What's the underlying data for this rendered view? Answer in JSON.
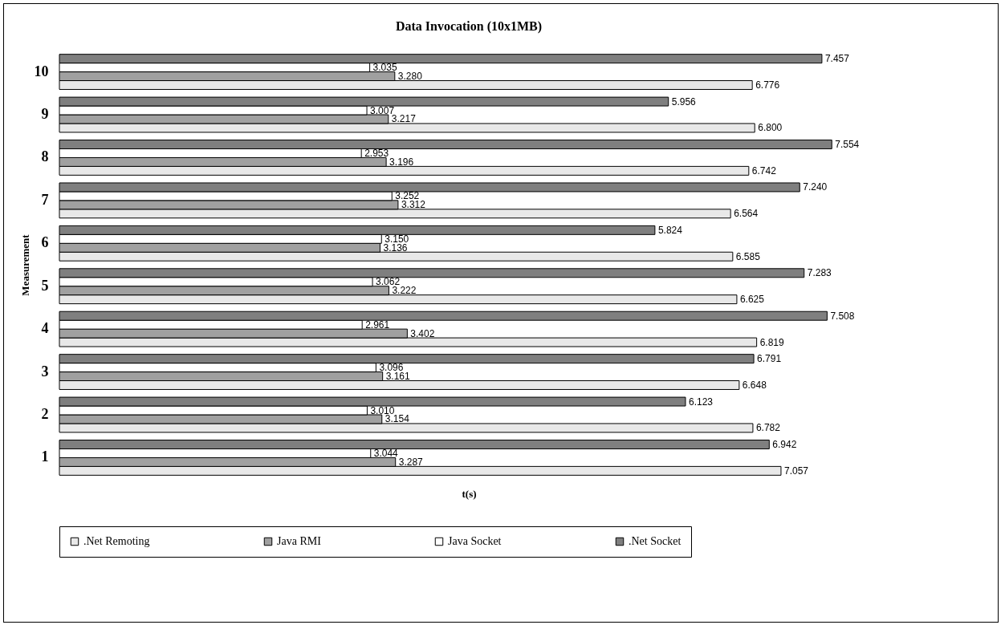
{
  "chart_data": {
    "type": "bar",
    "orientation": "horizontal",
    "title": "Data Invocation (10x1MB)",
    "xlabel": "t(s)",
    "ylabel": "Measurement",
    "categories": [
      "10",
      "9",
      "8",
      "7",
      "6",
      "5",
      "4",
      "3",
      "2",
      "1"
    ],
    "series": [
      {
        "name": ".Net Remoting",
        "color": "#e8e8e8",
        "values": [
          6.776,
          6.8,
          6.742,
          6.564,
          6.585,
          6.625,
          6.819,
          6.648,
          6.782,
          7.057
        ],
        "value_labels": [
          "6.776",
          "6.800",
          "6.742",
          "6.564",
          "6.585",
          "6.625",
          "6.819",
          "6.648",
          "6.782",
          "7.057"
        ]
      },
      {
        "name": "Java RMI",
        "color": "#a0a0a0",
        "values": [
          3.28,
          3.217,
          3.196,
          3.312,
          3.136,
          3.222,
          3.402,
          3.161,
          3.154,
          3.287
        ],
        "value_labels": [
          "3.280",
          "3.217",
          "3.196",
          "3.312",
          "3.136",
          "3.222",
          "3.402",
          "3.161",
          "3.154",
          "3.287"
        ]
      },
      {
        "name": "Java Socket",
        "color": "#ffffff",
        "values": [
          3.035,
          3.007,
          2.953,
          3.252,
          3.15,
          3.062,
          2.961,
          3.096,
          3.01,
          3.044
        ],
        "value_labels": [
          "3.035",
          "3.007",
          "2.953",
          "3.252",
          "3.150",
          "3.062",
          "2.961",
          "3.096",
          "3.010",
          "3.044"
        ]
      },
      {
        "name": ".Net Socket",
        "color": "#7f7f7f",
        "values": [
          7.457,
          5.956,
          7.554,
          7.24,
          5.824,
          7.283,
          7.508,
          6.791,
          6.123,
          6.942
        ],
        "value_labels": [
          "7.457",
          "5.956",
          "7.554",
          "7.240",
          "5.824",
          "7.283",
          "7.508",
          "6.791",
          "6.123",
          "6.942"
        ]
      }
    ],
    "tick_labels": "y",
    "grid": false,
    "legend": "bottom"
  }
}
